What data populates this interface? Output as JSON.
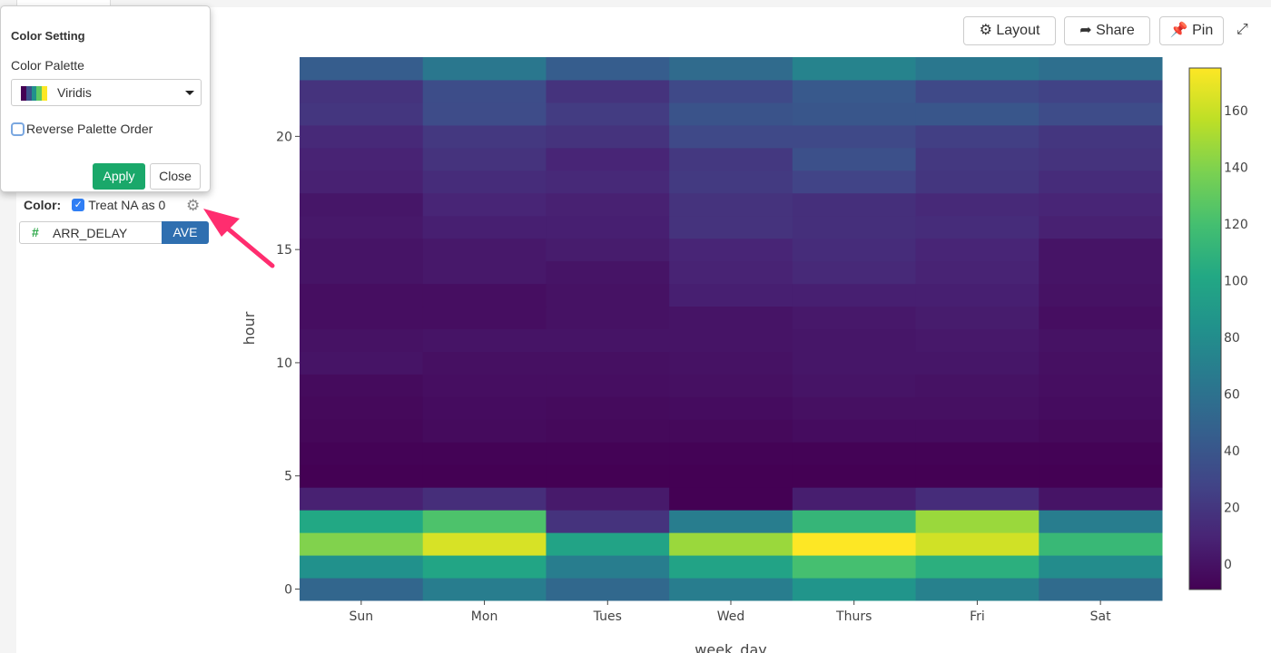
{
  "popup": {
    "title": "Color Setting",
    "palette_label": "Color Palette",
    "palette_value": "Viridis",
    "reverse_label": "Reverse Palette Order",
    "reverse_checked": false,
    "apply": "Apply",
    "close": "Close"
  },
  "color_config": {
    "label": "Color:",
    "treat_na_label": "Treat NA as 0",
    "treat_na_checked": true,
    "field": "ARR_DELAY",
    "field_type_icon": "#",
    "aggregation": "AVE"
  },
  "toolbar": {
    "layout": "Layout",
    "share": "Share",
    "pin": "Pin"
  },
  "colors": {
    "apply": "#1aa86a",
    "aggregation": "#2f6fb0",
    "arrow": "#ff2d6f"
  },
  "chart_data": {
    "type": "heatmap",
    "colorscale": "Viridis",
    "xlabel": "week_day",
    "ylabel": "hour",
    "x": [
      "Sun",
      "Mon",
      "Tues",
      "Wed",
      "Thurs",
      "Fri",
      "Sat"
    ],
    "y": [
      0,
      1,
      2,
      3,
      4,
      5,
      6,
      7,
      8,
      9,
      10,
      11,
      12,
      13,
      14,
      15,
      16,
      17,
      18,
      19,
      20,
      21,
      22,
      23
    ],
    "yticks": [
      0,
      5,
      10,
      15,
      20
    ],
    "zrange": [
      -9,
      175
    ],
    "colorbar_ticks": [
      0,
      20,
      40,
      60,
      80,
      100,
      120,
      140,
      160
    ],
    "z": [
      [
        51,
        68,
        53,
        68,
        86,
        71,
        55
      ],
      [
        83,
        99,
        68,
        97,
        120,
        107,
        79
      ],
      [
        140,
        164,
        97,
        147,
        175,
        162,
        114
      ],
      [
        101,
        123,
        18,
        68,
        112,
        147,
        68
      ],
      [
        8,
        15,
        4,
        -9,
        6,
        14,
        1
      ],
      [
        -9,
        -9,
        -9,
        -9,
        -9,
        -9,
        -9
      ],
      [
        -8,
        -8,
        -8,
        -8,
        -8,
        -8,
        -8
      ],
      [
        -6,
        -4,
        -5,
        -5,
        -3,
        -3,
        -5
      ],
      [
        -5,
        -3,
        -4,
        -3,
        -1,
        -1,
        -3
      ],
      [
        -4,
        -2,
        -2,
        -1,
        1,
        0,
        -2
      ],
      [
        1,
        -1,
        -1,
        0,
        2,
        2,
        -1
      ],
      [
        0,
        1,
        1,
        1,
        2,
        3,
        0
      ],
      [
        -2,
        -2,
        0,
        1,
        3,
        5,
        -2
      ],
      [
        -2,
        -2,
        0,
        7,
        7,
        7,
        0
      ],
      [
        1,
        3,
        1,
        9,
        12,
        9,
        1
      ],
      [
        1,
        3,
        5,
        10,
        14,
        10,
        1
      ],
      [
        3,
        7,
        7,
        18,
        16,
        14,
        8
      ],
      [
        2,
        10,
        8,
        18,
        16,
        12,
        10
      ],
      [
        8,
        14,
        12,
        22,
        28,
        20,
        14
      ],
      [
        9,
        18,
        10,
        21,
        36,
        21,
        18
      ],
      [
        12,
        21,
        18,
        31,
        31,
        25,
        20
      ],
      [
        20,
        33,
        23,
        38,
        40,
        40,
        33
      ],
      [
        18,
        34,
        18,
        31,
        42,
        31,
        27
      ],
      [
        45,
        64,
        45,
        55,
        73,
        64,
        58
      ]
    ]
  }
}
